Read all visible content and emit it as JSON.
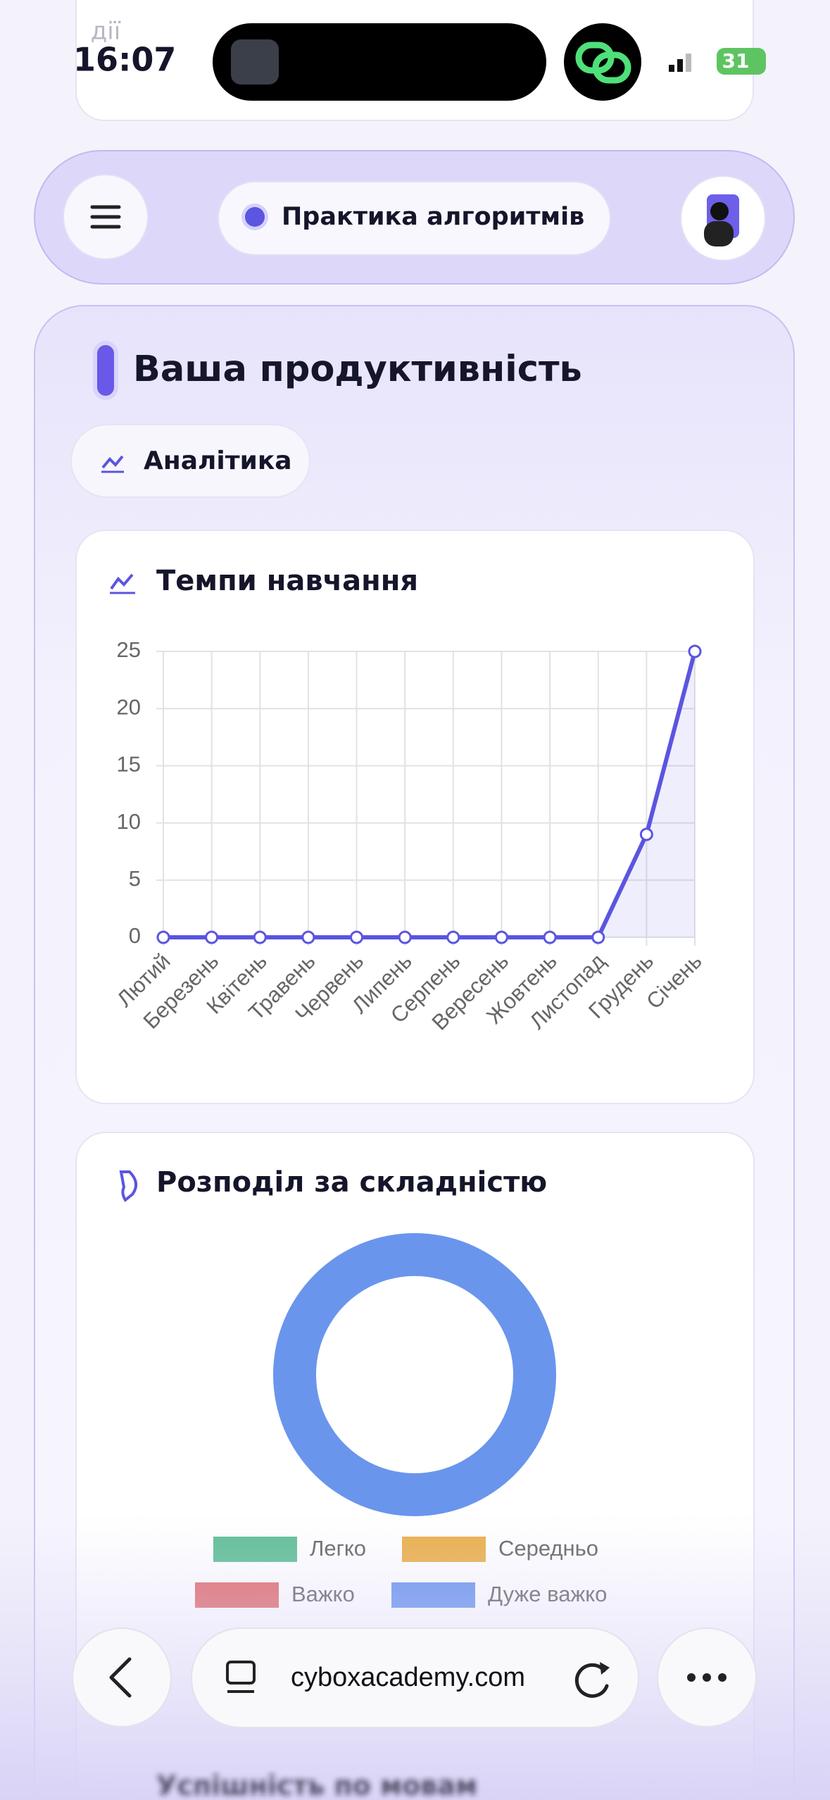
{
  "status_bar": {
    "back_app": "дії",
    "time": "16:07",
    "battery": "31"
  },
  "nav": {
    "title": "Практика алгоритмів"
  },
  "section": {
    "title": "Ваша продуктивність",
    "tab": "Аналітика"
  },
  "chart_data": [
    {
      "type": "line",
      "title": "Темпи навчання",
      "categories": [
        "Лютий",
        "Березень",
        "Квітень",
        "Травень",
        "Червень",
        "Липень",
        "Серпень",
        "Вересень",
        "Жовтень",
        "Листопад",
        "Грудень",
        "Січень"
      ],
      "values": [
        0,
        0,
        0,
        0,
        0,
        0,
        0,
        0,
        0,
        0,
        9,
        25
      ],
      "color": "#5b55e0",
      "ylim": [
        0,
        25
      ],
      "yticks": [
        0,
        5,
        10,
        15,
        20,
        25
      ],
      "grid": true
    },
    {
      "type": "doughnut",
      "title": "Розподіл за складністю",
      "categories": [
        "Легко",
        "Середньо",
        "Важко",
        "Дуже важко"
      ],
      "values": [
        0,
        0,
        0,
        100
      ],
      "colors": [
        "#5fbf96",
        "#ebb04b",
        "#e06c6c",
        "#6a95ed"
      ],
      "legend": "bottom"
    }
  ],
  "browser": {
    "url": "cyboxacademy.com"
  },
  "next_section": {
    "title": "Успішність по мовам"
  }
}
